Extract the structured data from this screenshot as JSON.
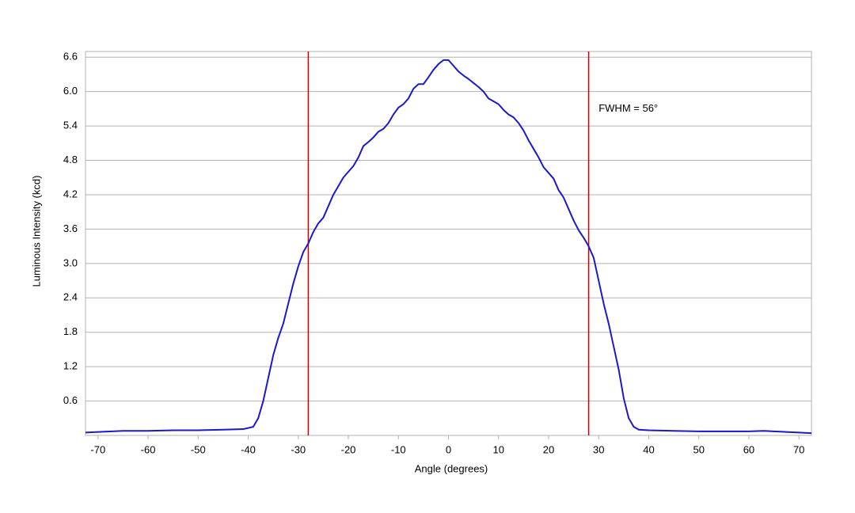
{
  "chart_data": {
    "type": "line",
    "xlabel": "Angle (degrees)",
    "ylabel": "Luminous Intensity (kcd)",
    "x": [
      -72.5,
      -70,
      -65,
      -60,
      -55,
      -50,
      -45,
      -41,
      -39,
      -38,
      -37,
      -36,
      -35,
      -34,
      -33,
      -32,
      -31,
      -30,
      -29,
      -28,
      -27,
      -26,
      -25,
      -24,
      -23,
      -22,
      -21,
      -20,
      -19,
      -18,
      -17,
      -16,
      -15,
      -14,
      -13,
      -12,
      -11,
      -10,
      -9,
      -8,
      -7,
      -6,
      -5,
      -4,
      -3,
      -2,
      -1,
      0,
      1,
      2,
      3,
      4,
      5,
      6,
      7,
      8,
      9,
      10,
      11,
      12,
      13,
      14,
      15,
      16,
      17,
      18,
      19,
      20,
      21,
      22,
      23,
      24,
      25,
      26,
      27,
      28,
      29,
      30,
      31,
      32,
      33,
      34,
      35,
      36,
      37,
      38,
      40,
      45,
      50,
      55,
      60,
      63,
      65,
      70,
      72.5
    ],
    "series": [
      {
        "name": "Luminous Intensity",
        "color": "#1a1acc",
        "values": [
          0.05,
          0.06,
          0.08,
          0.08,
          0.09,
          0.09,
          0.1,
          0.11,
          0.15,
          0.3,
          0.6,
          1.0,
          1.4,
          1.7,
          1.95,
          2.3,
          2.65,
          2.95,
          3.2,
          3.35,
          3.55,
          3.7,
          3.8,
          4.0,
          4.2,
          4.35,
          4.5,
          4.6,
          4.7,
          4.85,
          5.05,
          5.12,
          5.2,
          5.3,
          5.35,
          5.45,
          5.6,
          5.72,
          5.78,
          5.88,
          6.05,
          6.13,
          6.13,
          6.25,
          6.38,
          6.48,
          6.55,
          6.55,
          6.45,
          6.35,
          6.28,
          6.22,
          6.15,
          6.08,
          6.0,
          5.88,
          5.83,
          5.78,
          5.68,
          5.6,
          5.55,
          5.45,
          5.32,
          5.15,
          5.0,
          4.85,
          4.68,
          4.58,
          4.48,
          4.28,
          4.15,
          3.95,
          3.75,
          3.58,
          3.45,
          3.3,
          3.1,
          2.7,
          2.3,
          1.95,
          1.55,
          1.15,
          0.65,
          0.3,
          0.15,
          0.1,
          0.09,
          0.08,
          0.07,
          0.07,
          0.07,
          0.08,
          0.07,
          0.05,
          0.04
        ]
      }
    ],
    "xlim": [
      -72.5,
      72.5
    ],
    "xticks": [
      -70,
      -60,
      -50,
      -40,
      -30,
      -20,
      -10,
      0,
      10,
      20,
      30,
      40,
      50,
      60,
      70
    ],
    "ylim": [
      0,
      6.7
    ],
    "yticks": [
      0.6,
      1.2,
      1.8,
      2.4,
      {
        "value": 3,
        "label": "3.0"
      },
      3.6,
      4.2,
      4.8,
      5.4,
      {
        "value": 6,
        "label": "6.0"
      },
      6.6
    ],
    "grid": true,
    "vlines": {
      "values": [
        -28,
        28
      ],
      "color": "#cc0000"
    },
    "annotation": {
      "text": "FWHM = 56°",
      "x": 30,
      "y": 5.7
    }
  }
}
